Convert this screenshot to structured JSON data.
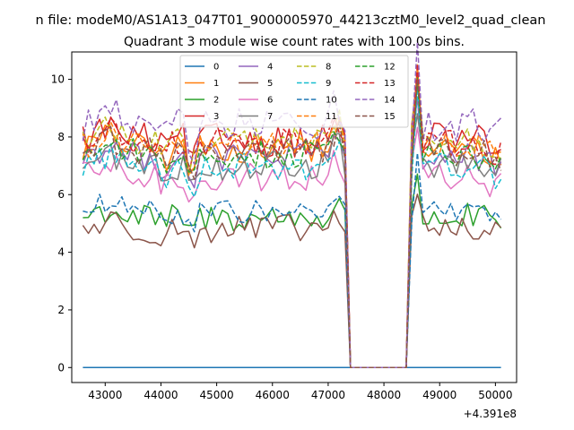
{
  "chart_data": {
    "type": "line",
    "suptitle": "n file: modeM0/AS1A13_047T01_9000005970_44213cztM0_level2_quad_clean",
    "title": "Quadrant 3 module wise count rates with 100.0s bins.",
    "xlabel": "",
    "ylabel": "",
    "x_offset_label": "+4.391e8",
    "xlim": [
      42400,
      50380
    ],
    "ylim": [
      -0.52,
      10.95
    ],
    "x_ticks": [
      43000,
      44000,
      45000,
      46000,
      47000,
      48000,
      49000,
      50000
    ],
    "x_tick_labels": [
      "43000",
      "44000",
      "45000",
      "46000",
      "47000",
      "48000",
      "49000",
      "50000"
    ],
    "y_ticks": [
      0,
      2,
      4,
      6,
      8,
      10
    ],
    "y_tick_labels": [
      "0",
      "2",
      "4",
      "6",
      "8",
      "10"
    ],
    "x_range": [
      42600,
      50180
    ],
    "bin": 100,
    "gap": [
      47400,
      48400
    ],
    "legend": {
      "placement": "top-center",
      "ncol": 4
    },
    "grid": false,
    "series": [
      {
        "name": "0",
        "color": "#1f77b4",
        "dash": false,
        "level": 0,
        "var": 0
      },
      {
        "name": "1",
        "color": "#ff7f0e",
        "dash": false,
        "level": 7.6,
        "var": 0.5
      },
      {
        "name": "2",
        "color": "#2ca02c",
        "dash": false,
        "level": 5.2,
        "var": 0.5
      },
      {
        "name": "3",
        "color": "#d62728",
        "dash": false,
        "level": 7.9,
        "var": 0.6
      },
      {
        "name": "4",
        "color": "#9467bd",
        "dash": false,
        "level": 7.3,
        "var": 0.5
      },
      {
        "name": "5",
        "color": "#8c564b",
        "dash": false,
        "level": 4.8,
        "var": 0.5
      },
      {
        "name": "6",
        "color": "#e377c2",
        "dash": false,
        "level": 6.6,
        "var": 0.5
      },
      {
        "name": "7",
        "color": "#7f7f7f",
        "dash": false,
        "level": 7.0,
        "var": 0.5
      },
      {
        "name": "8",
        "color": "#bcbd22",
        "dash": true,
        "level": 7.9,
        "var": 0.5
      },
      {
        "name": "9",
        "color": "#17becf",
        "dash": true,
        "level": 7.0,
        "var": 0.5
      },
      {
        "name": "10",
        "color": "#1f77b4",
        "dash": true,
        "level": 5.4,
        "var": 0.4
      },
      {
        "name": "11",
        "color": "#ff7f0e",
        "dash": true,
        "level": 7.7,
        "var": 0.5
      },
      {
        "name": "12",
        "color": "#2ca02c",
        "dash": true,
        "level": 7.4,
        "var": 0.5
      },
      {
        "name": "13",
        "color": "#d62728",
        "dash": true,
        "level": 7.8,
        "var": 0.5
      },
      {
        "name": "14",
        "color": "#9467bd",
        "dash": true,
        "level": 8.4,
        "var": 0.6
      },
      {
        "name": "15",
        "color": "#8c564b",
        "dash": true,
        "level": 7.5,
        "var": 0.5
      }
    ]
  }
}
